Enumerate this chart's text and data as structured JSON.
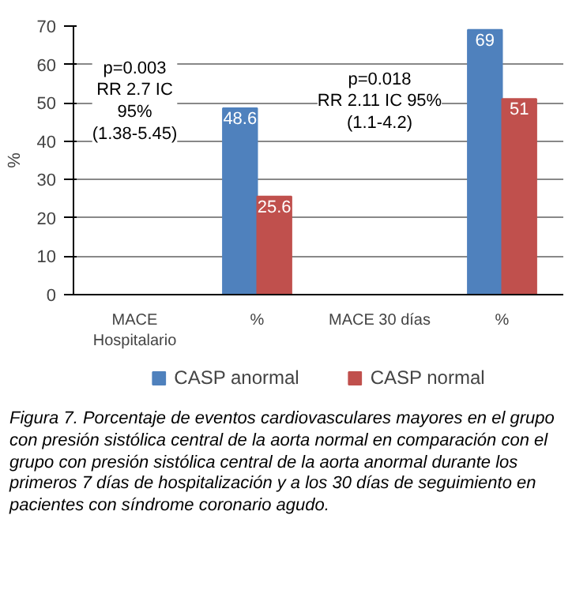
{
  "chart_data": {
    "type": "bar",
    "ylabel": "%",
    "categories": [
      "MACE\nHospitalario",
      "%",
      "MACE 30 días",
      "%"
    ],
    "series": [
      {
        "name": "CASP anormal",
        "color": "#4f81bd",
        "values": [
          null,
          48.6,
          null,
          69
        ]
      },
      {
        "name": "CASP normal",
        "color": "#c0504d",
        "values": [
          null,
          25.6,
          null,
          51
        ]
      }
    ],
    "ylim": [
      0,
      70
    ],
    "yticks": [
      0,
      10,
      20,
      30,
      40,
      50,
      60,
      70
    ],
    "grid": "y",
    "legend": "bottom",
    "data_labels": true,
    "annotations": [
      "p=0.003\nRR 2.7 IC\n95%\n(1.38-5.45)",
      "p=0.018\nRR 2.11 IC 95%\n(1.1-4.2)",
      "Figura 7. Porcentaje de eventos cardiovasculares mayores en el grupo con presión sistólica central de la aorta normal en comparación con el grupo con presión sistólica central de la aorta anormal durante los primeros 7 días de hospitalización y a los 30 días de seguimiento en pacientes con síndrome coronario agudo."
    ]
  }
}
